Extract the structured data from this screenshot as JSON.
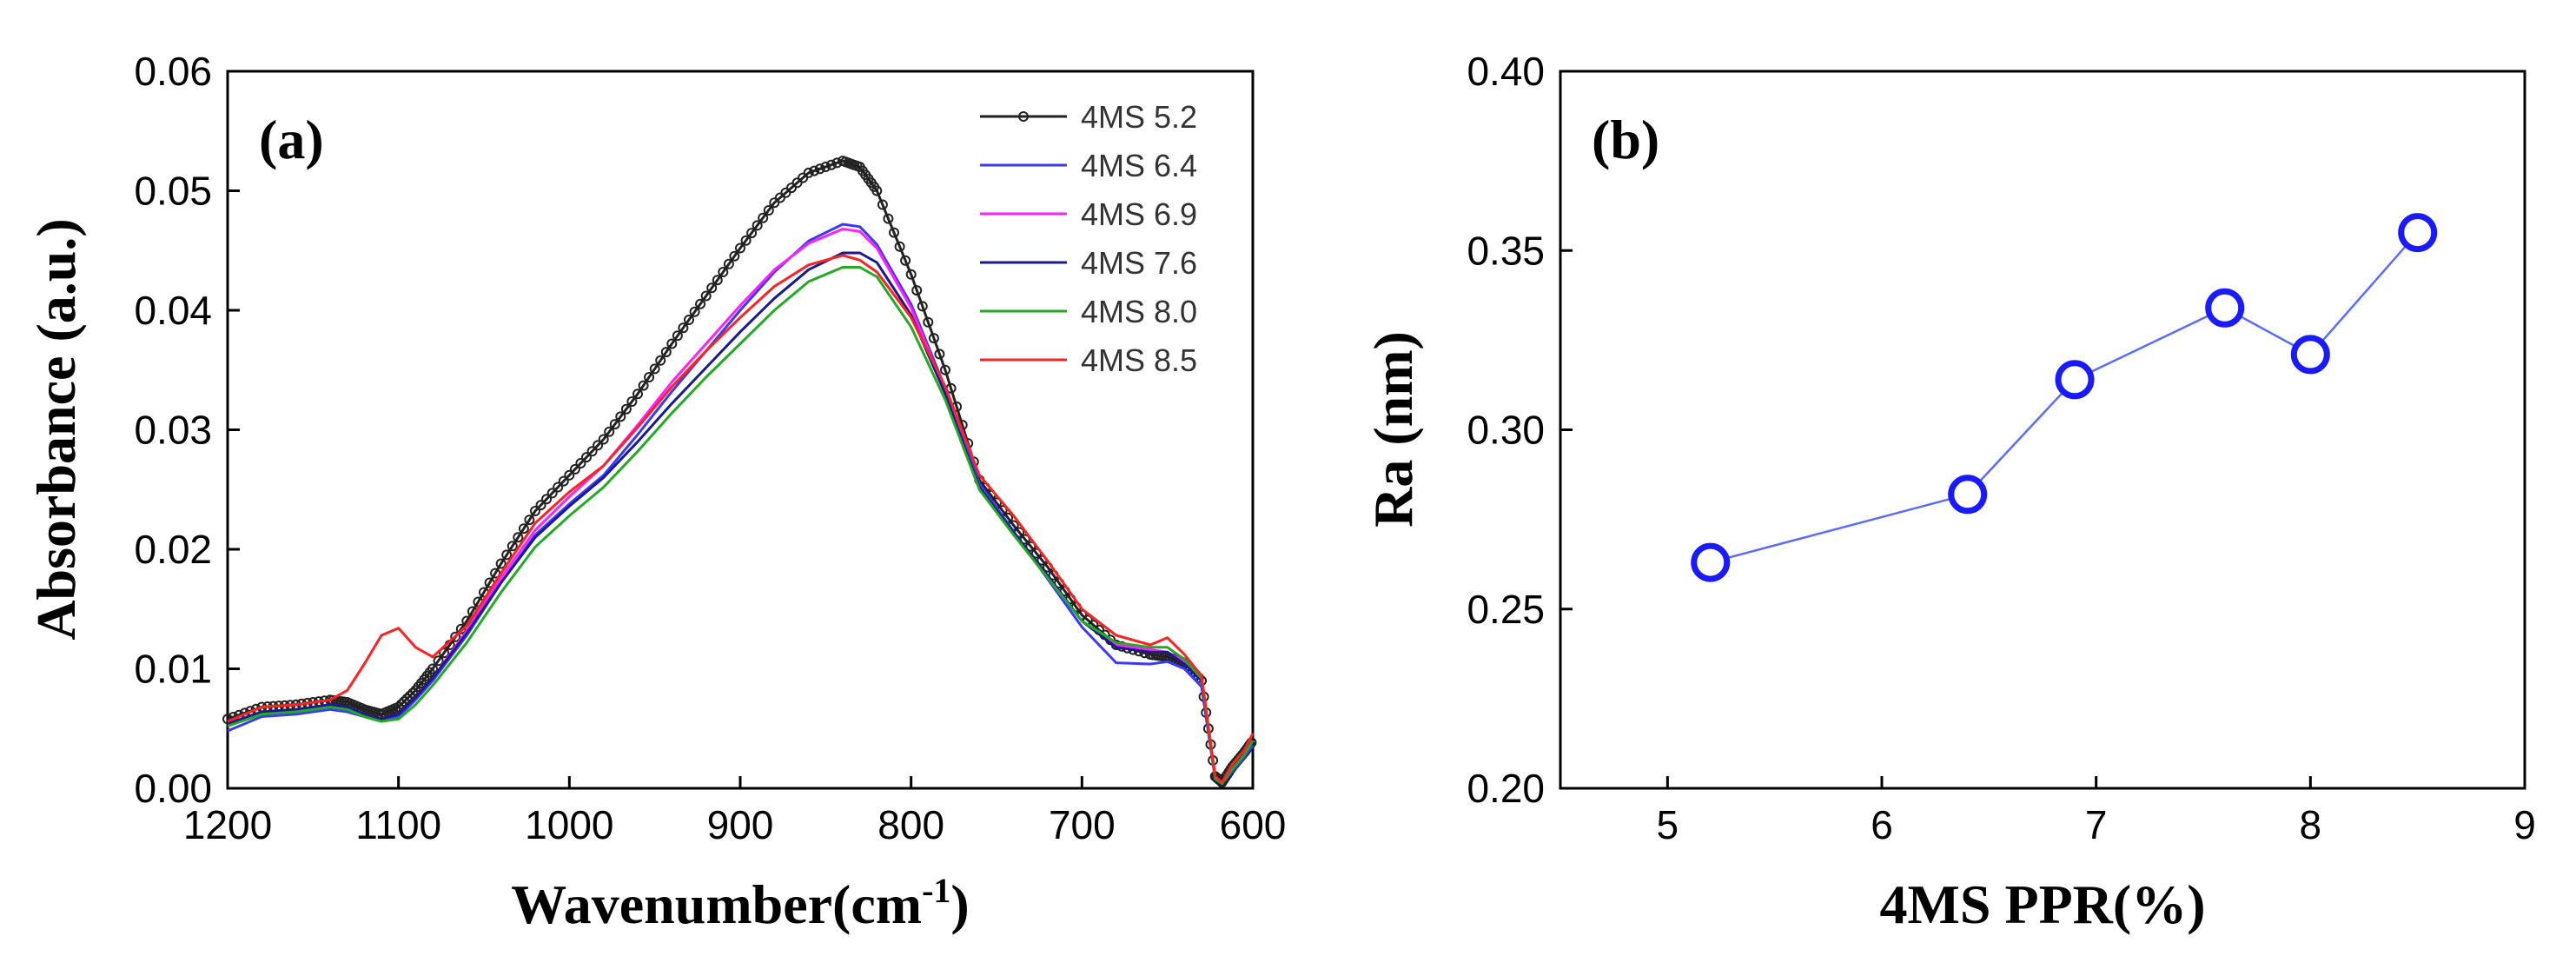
{
  "chart_data": [
    {
      "type": "line",
      "panel_label": "(a)",
      "xlabel": "Wavenumber(cm",
      "xlabel_sup": "-1",
      "xlabel_close": ")",
      "ylabel": "Absorbance (a.u.)",
      "xlim": [
        1200,
        600
      ],
      "ylim": [
        0,
        0.06
      ],
      "xticks": [
        "1200",
        "1100",
        "1000",
        "900",
        "800",
        "700",
        "600"
      ],
      "yticks": [
        "0.00",
        "0.01",
        "0.02",
        "0.03",
        "0.04",
        "0.05",
        "0.06"
      ],
      "x": [
        1200,
        1180,
        1160,
        1140,
        1130,
        1120,
        1110,
        1100,
        1090,
        1080,
        1060,
        1040,
        1020,
        1000,
        980,
        960,
        940,
        920,
        900,
        880,
        860,
        840,
        830,
        820,
        800,
        780,
        760,
        740,
        720,
        700,
        680,
        660,
        650,
        640,
        630,
        622,
        618,
        612,
        605,
        600
      ],
      "series": [
        {
          "name": "4MS 5.2",
          "color": "#222222",
          "marker": "circle",
          "values": [
            0.0058,
            0.0068,
            0.007,
            0.0074,
            0.0072,
            0.0066,
            0.0062,
            0.0068,
            0.0082,
            0.01,
            0.014,
            0.0188,
            0.0232,
            0.0262,
            0.0292,
            0.033,
            0.0372,
            0.0412,
            0.0452,
            0.049,
            0.0515,
            0.0525,
            0.052,
            0.05,
            0.043,
            0.035,
            0.0258,
            0.022,
            0.0185,
            0.0145,
            0.012,
            0.0112,
            0.011,
            0.0105,
            0.009,
            0.001,
            0.0005,
            0.0018,
            0.003,
            0.004
          ]
        },
        {
          "name": "4MS 6.4",
          "color": "#3a3aff",
          "marker": "none",
          "values": [
            0.0048,
            0.006,
            0.0062,
            0.0066,
            0.0064,
            0.006,
            0.0056,
            0.006,
            0.0074,
            0.009,
            0.0128,
            0.0172,
            0.0212,
            0.0238,
            0.0262,
            0.0296,
            0.0332,
            0.0366,
            0.04,
            0.0432,
            0.0458,
            0.0472,
            0.047,
            0.0455,
            0.0405,
            0.0335,
            0.0255,
            0.0215,
            0.0175,
            0.0135,
            0.0105,
            0.0104,
            0.0106,
            0.01,
            0.0085,
            0.0008,
            0.0004,
            0.0014,
            0.0026,
            0.0036
          ]
        },
        {
          "name": "4MS 6.9",
          "color": "#ff22ff",
          "marker": "none",
          "values": [
            0.0054,
            0.0064,
            0.0066,
            0.007,
            0.0068,
            0.0062,
            0.0058,
            0.0062,
            0.0076,
            0.0092,
            0.0132,
            0.0176,
            0.0216,
            0.0244,
            0.027,
            0.0304,
            0.034,
            0.0372,
            0.0404,
            0.0434,
            0.0456,
            0.0468,
            0.0466,
            0.0452,
            0.0402,
            0.0332,
            0.0252,
            0.0214,
            0.0176,
            0.014,
            0.012,
            0.0116,
            0.0114,
            0.0106,
            0.009,
            0.0009,
            0.0004,
            0.0016,
            0.0028,
            0.004
          ]
        },
        {
          "name": "4MS 7.6",
          "color": "#1a1a90",
          "marker": "none",
          "values": [
            0.0054,
            0.0064,
            0.0066,
            0.007,
            0.0068,
            0.0062,
            0.0058,
            0.0062,
            0.0076,
            0.0092,
            0.013,
            0.0172,
            0.021,
            0.0236,
            0.026,
            0.029,
            0.0322,
            0.0352,
            0.0382,
            0.041,
            0.0434,
            0.0448,
            0.0448,
            0.044,
            0.0396,
            0.033,
            0.0252,
            0.0214,
            0.0178,
            0.014,
            0.0118,
            0.0114,
            0.0114,
            0.0104,
            0.009,
            0.0008,
            0.0004,
            0.0016,
            0.0028,
            0.004
          ]
        },
        {
          "name": "4MS 8.0",
          "color": "#22aa22",
          "marker": "none",
          "values": [
            0.0052,
            0.0062,
            0.0064,
            0.0068,
            0.0066,
            0.006,
            0.0056,
            0.0058,
            0.007,
            0.0086,
            0.0122,
            0.0164,
            0.0202,
            0.0228,
            0.0252,
            0.0282,
            0.0314,
            0.0344,
            0.0372,
            0.04,
            0.0424,
            0.0436,
            0.0436,
            0.0428,
            0.0386,
            0.0325,
            0.025,
            0.0212,
            0.0176,
            0.014,
            0.0122,
            0.0118,
            0.0118,
            0.0108,
            0.0092,
            0.0008,
            0.0004,
            0.0016,
            0.0028,
            0.004
          ]
        },
        {
          "name": "4MS 8.5",
          "color": "#ff2222",
          "marker": "none",
          "values": [
            0.0056,
            0.0068,
            0.007,
            0.0074,
            0.0082,
            0.0104,
            0.0128,
            0.0134,
            0.0118,
            0.011,
            0.0136,
            0.018,
            0.0222,
            0.0248,
            0.027,
            0.0302,
            0.0336,
            0.0366,
            0.0394,
            0.042,
            0.0438,
            0.0446,
            0.0442,
            0.0432,
            0.0394,
            0.0336,
            0.0262,
            0.0228,
            0.019,
            0.015,
            0.0128,
            0.012,
            0.0126,
            0.0112,
            0.0094,
            0.001,
            0.0005,
            0.002,
            0.0032,
            0.0046
          ]
        }
      ]
    },
    {
      "type": "scatter",
      "panel_label": "(b)",
      "xlabel": "4MS PPR(%)",
      "ylabel": "Ra (nm)",
      "xlim": [
        4.5,
        9
      ],
      "ylim": [
        0.2,
        0.4
      ],
      "xticks": [
        "5",
        "6",
        "7",
        "8",
        "9"
      ],
      "yticks": [
        "0.20",
        "0.25",
        "0.30",
        "0.35",
        "0.40"
      ],
      "series": [
        {
          "name": "Ra",
          "color": "#1a1aff",
          "marker": "open-circle",
          "connected": true,
          "x": [
            5.2,
            6.4,
            6.9,
            7.6,
            8.0,
            8.5
          ],
          "values": [
            0.263,
            0.282,
            0.314,
            0.334,
            0.321,
            0.355
          ]
        }
      ]
    }
  ]
}
